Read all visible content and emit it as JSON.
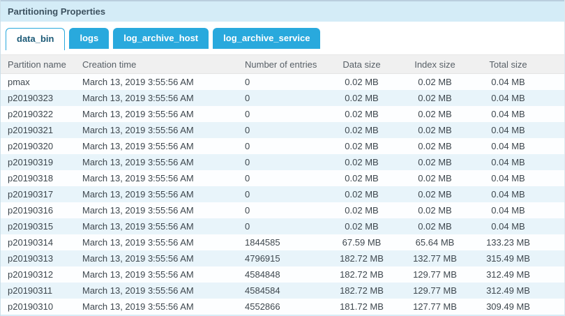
{
  "panel": {
    "title": "Partitioning Properties"
  },
  "colors": {
    "accent": "#29a9dd",
    "band": "#d4ecf7",
    "stripe": "#e8f4fa"
  },
  "tabs": [
    {
      "label": "data_bin",
      "active": true
    },
    {
      "label": "logs",
      "active": false
    },
    {
      "label": "log_archive_host",
      "active": false
    },
    {
      "label": "log_archive_service",
      "active": false
    }
  ],
  "table": {
    "columns": [
      "Partition name",
      "Creation time",
      "Number of entries",
      "Data size",
      "Index size",
      "Total size"
    ],
    "rows": [
      [
        "pmax",
        "March 13, 2019 3:55:56 AM",
        "0",
        "0.02 MB",
        "0.02 MB",
        "0.04 MB"
      ],
      [
        "p20190323",
        "March 13, 2019 3:55:56 AM",
        "0",
        "0.02 MB",
        "0.02 MB",
        "0.04 MB"
      ],
      [
        "p20190322",
        "March 13, 2019 3:55:56 AM",
        "0",
        "0.02 MB",
        "0.02 MB",
        "0.04 MB"
      ],
      [
        "p20190321",
        "March 13, 2019 3:55:56 AM",
        "0",
        "0.02 MB",
        "0.02 MB",
        "0.04 MB"
      ],
      [
        "p20190320",
        "March 13, 2019 3:55:56 AM",
        "0",
        "0.02 MB",
        "0.02 MB",
        "0.04 MB"
      ],
      [
        "p20190319",
        "March 13, 2019 3:55:56 AM",
        "0",
        "0.02 MB",
        "0.02 MB",
        "0.04 MB"
      ],
      [
        "p20190318",
        "March 13, 2019 3:55:56 AM",
        "0",
        "0.02 MB",
        "0.02 MB",
        "0.04 MB"
      ],
      [
        "p20190317",
        "March 13, 2019 3:55:56 AM",
        "0",
        "0.02 MB",
        "0.02 MB",
        "0.04 MB"
      ],
      [
        "p20190316",
        "March 13, 2019 3:55:56 AM",
        "0",
        "0.02 MB",
        "0.02 MB",
        "0.04 MB"
      ],
      [
        "p20190315",
        "March 13, 2019 3:55:56 AM",
        "0",
        "0.02 MB",
        "0.02 MB",
        "0.04 MB"
      ],
      [
        "p20190314",
        "March 13, 2019 3:55:56 AM",
        "1844585",
        "67.59 MB",
        "65.64 MB",
        "133.23 MB"
      ],
      [
        "p20190313",
        "March 13, 2019 3:55:56 AM",
        "4796915",
        "182.72 MB",
        "132.77 MB",
        "315.49 MB"
      ],
      [
        "p20190312",
        "March 13, 2019 3:55:56 AM",
        "4584848",
        "182.72 MB",
        "129.77 MB",
        "312.49 MB"
      ],
      [
        "p20190311",
        "March 13, 2019 3:55:56 AM",
        "4584584",
        "182.72 MB",
        "129.77 MB",
        "312.49 MB"
      ],
      [
        "p20190310",
        "March 13, 2019 3:55:56 AM",
        "4552866",
        "181.72 MB",
        "127.77 MB",
        "309.49 MB"
      ]
    ]
  }
}
